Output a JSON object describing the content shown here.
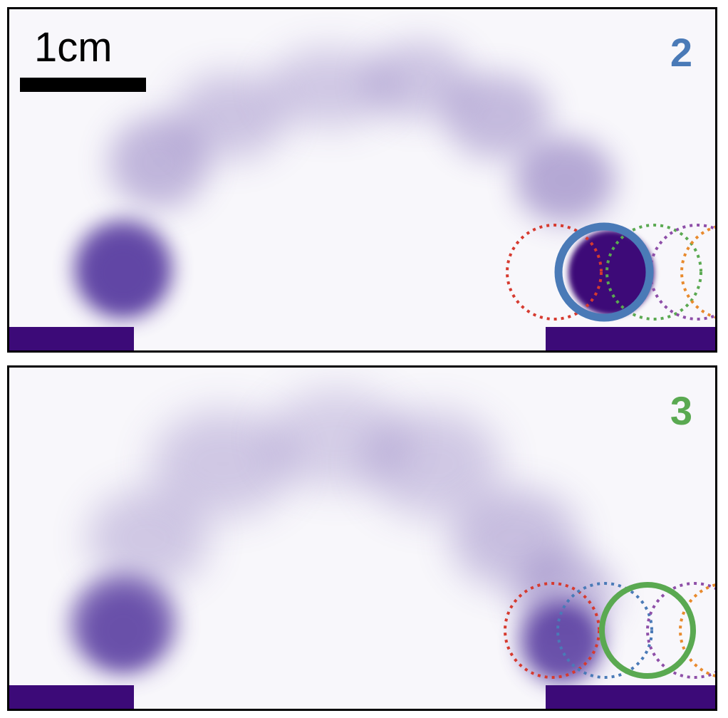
{
  "scale_bar": {
    "label": "1cm"
  },
  "panels": [
    {
      "number": "2",
      "number_color": "#4a7ab7",
      "highlight_color": "#4a7ab7"
    },
    {
      "number": "3",
      "number_color": "#5aa951",
      "highlight_color": "#5aa951"
    }
  ],
  "colors": {
    "dotted_red": "#d63a2f",
    "dotted_green": "#5aa951",
    "dotted_purple": "#8e4fa8",
    "dotted_orange": "#e88a2d",
    "dotted_blue": "#4a7ab7",
    "platform": "#3c0a78",
    "density": "#583ca0"
  }
}
